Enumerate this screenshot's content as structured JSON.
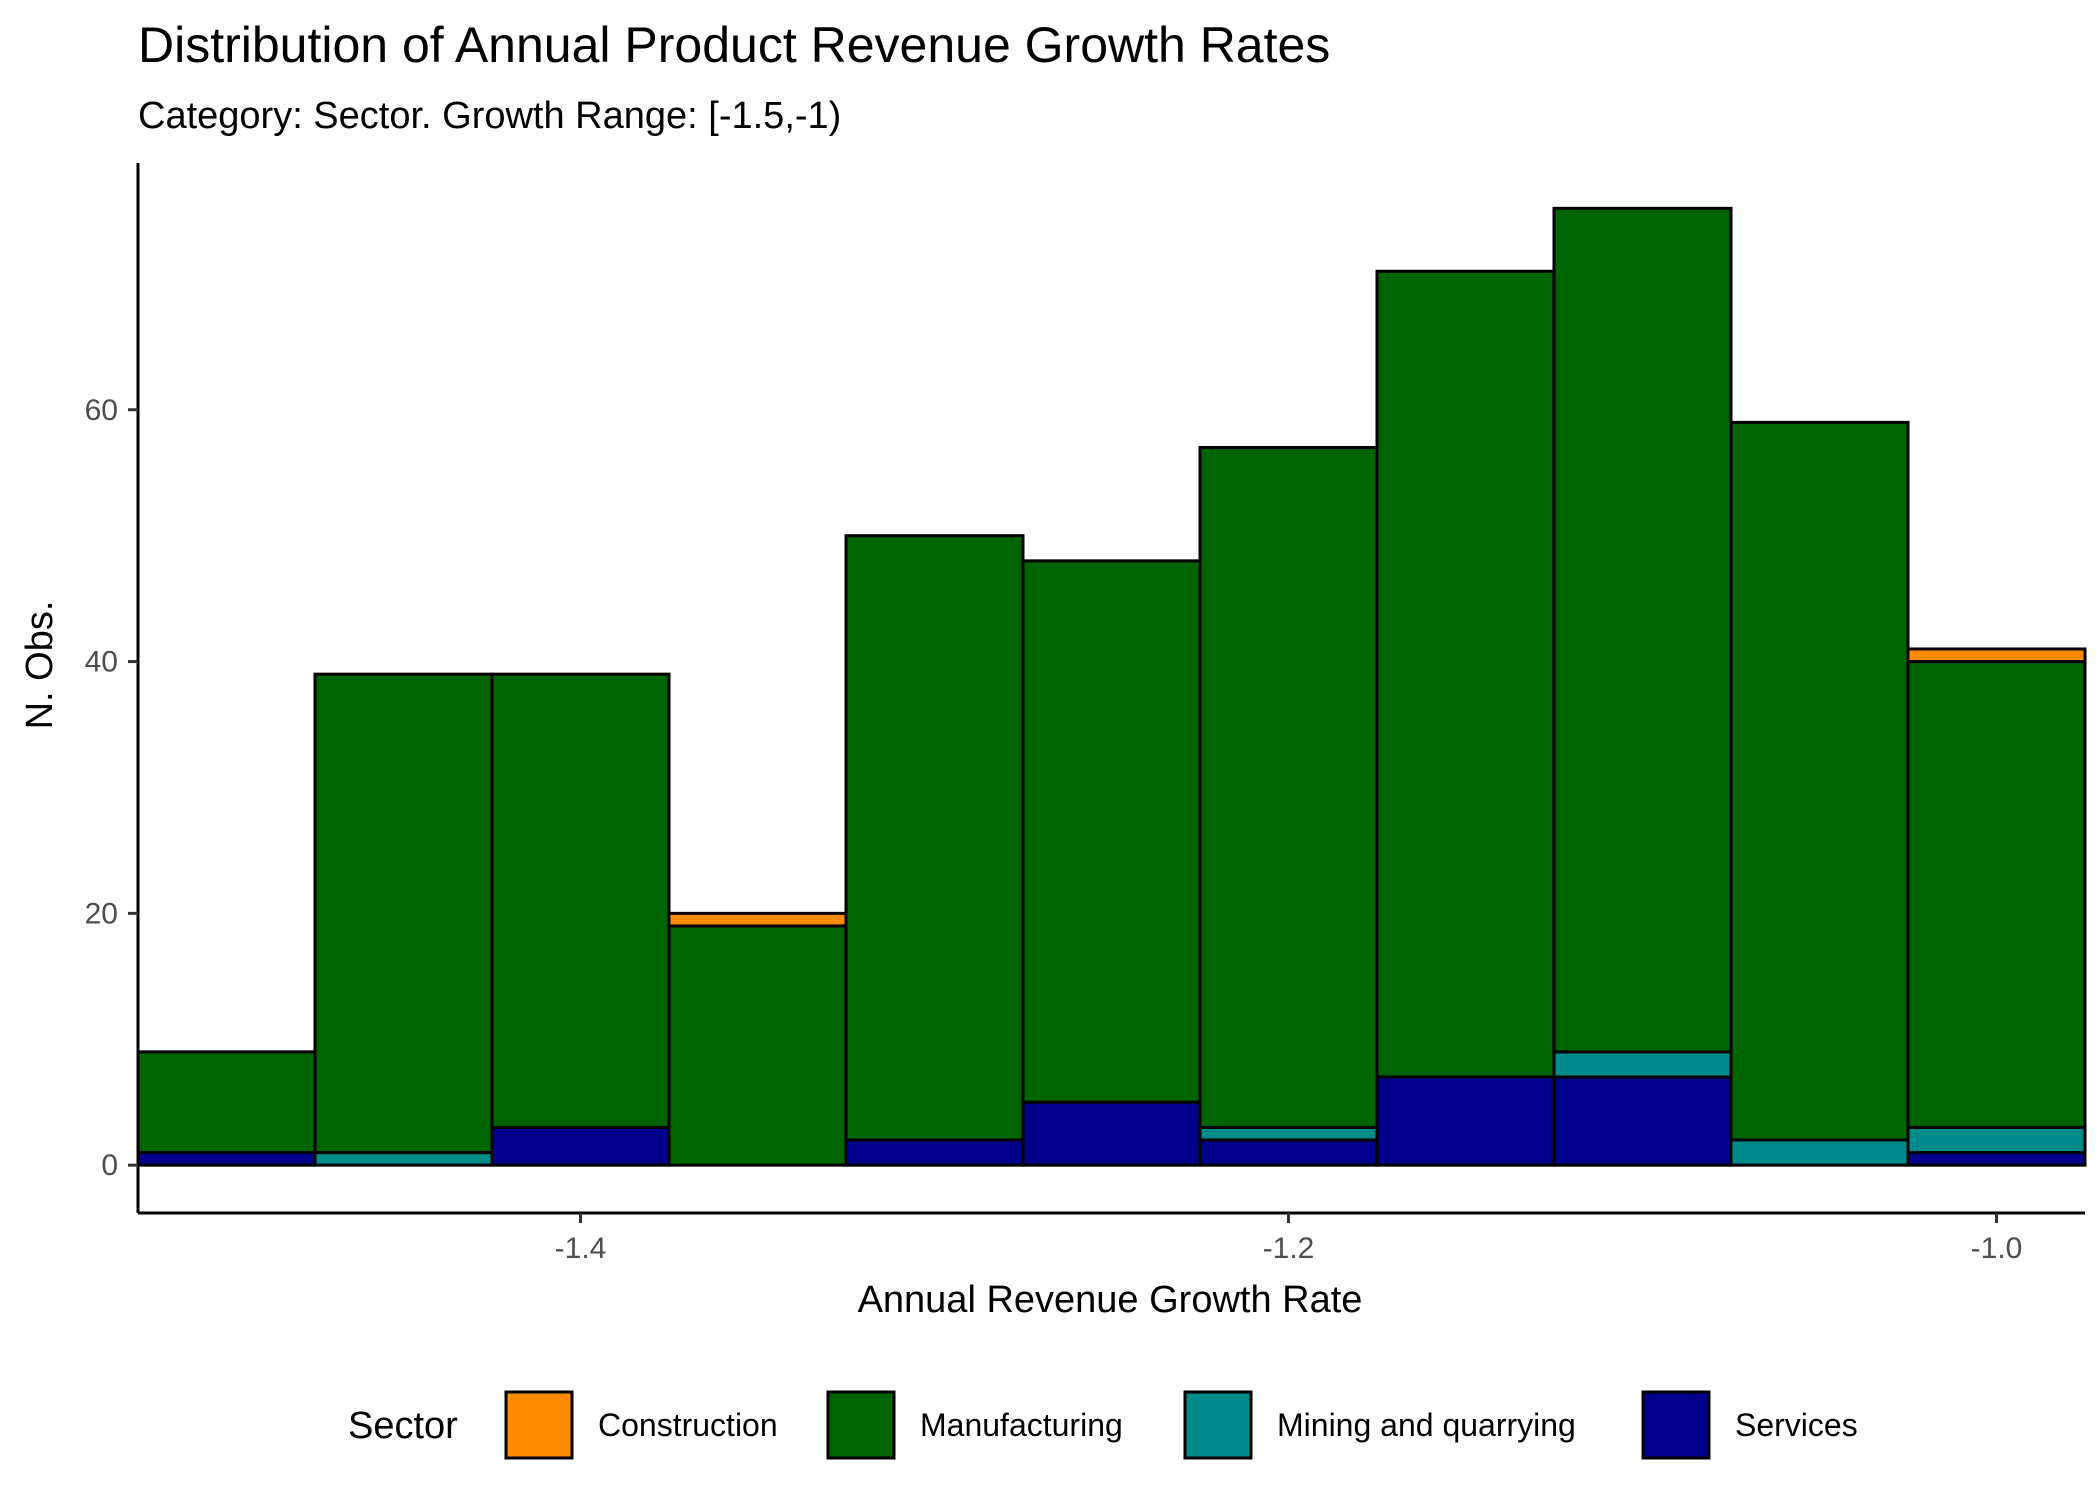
{
  "chart_data": {
    "type": "bar",
    "stacked": true,
    "histogram": true,
    "title": "Distribution of Annual Product Revenue Growth Rates",
    "subtitle": "Category: Sector. Growth Range: [-1.5,-1)",
    "xlabel": "Annual Revenue Growth Rate",
    "ylabel": "N. Obs.",
    "xlim": [
      -1.525,
      -0.975
    ],
    "ylim": [
      -3.8,
      79.6
    ],
    "x_ticks": [
      -1.4,
      -1.2,
      -1.0
    ],
    "x_tick_labels": [
      "-1.4",
      "-1.2",
      "-1.0"
    ],
    "y_ticks": [
      0,
      20,
      40,
      60
    ],
    "y_tick_labels": [
      "0",
      "20",
      "40",
      "60"
    ],
    "bins": [
      [
        -1.525,
        -1.475
      ],
      [
        -1.475,
        -1.425
      ],
      [
        -1.425,
        -1.375
      ],
      [
        -1.375,
        -1.325
      ],
      [
        -1.325,
        -1.275
      ],
      [
        -1.275,
        -1.225
      ],
      [
        -1.225,
        -1.175
      ],
      [
        -1.175,
        -1.125
      ],
      [
        -1.125,
        -1.075
      ],
      [
        -1.075,
        -1.025
      ],
      [
        -1.025,
        -0.975
      ]
    ],
    "stack_order": [
      "Services",
      "Mining and quarrying",
      "Manufacturing",
      "Construction"
    ],
    "series": [
      {
        "name": "Construction",
        "color": "#FF8C00",
        "values": [
          0,
          0,
          0,
          1,
          0,
          0,
          0,
          0,
          0,
          0,
          1
        ]
      },
      {
        "name": "Manufacturing",
        "color": "#006400",
        "values": [
          8,
          38,
          36,
          19,
          48,
          43,
          54,
          64,
          67,
          57,
          37
        ]
      },
      {
        "name": "Mining and quarrying",
        "color": "#008B8B",
        "values": [
          0,
          1,
          0,
          0,
          0,
          0,
          1,
          0,
          2,
          2,
          2
        ]
      },
      {
        "name": "Services",
        "color": "#00008B",
        "values": [
          1,
          0,
          3,
          0,
          2,
          5,
          2,
          7,
          7,
          0,
          1
        ]
      }
    ],
    "grid": false,
    "legend": {
      "title": "Sector",
      "position": "bottom",
      "entries": [
        "Construction",
        "Manufacturing",
        "Mining and quarrying",
        "Services"
      ]
    }
  }
}
